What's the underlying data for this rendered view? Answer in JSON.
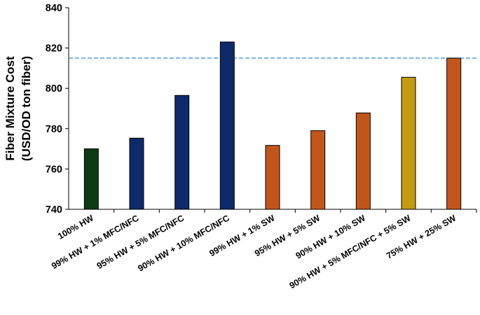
{
  "chart_data": {
    "type": "bar",
    "ylabel_line1": "Fiber Mixture Cost",
    "ylabel_line2": "(USD/OD ton fiber)",
    "ylim": [
      740,
      840
    ],
    "yticks": [
      "740",
      "760",
      "780",
      "800",
      "820",
      "840"
    ],
    "grid": false,
    "legend": "none",
    "reference_line": {
      "value": 815,
      "style": "dashed",
      "color": "#2b8cd8"
    },
    "categories": [
      "100% HW",
      "99% HW + 1% MFC/NFC",
      "95% HW + 5% MFC/NFC",
      "90% HW + 10% MFC/NFC",
      "99% HW + 1% SW",
      "95% HW + 5% SW",
      "90% HW + 10% SW",
      "90% HW + 5% MFC/NFC + 5% SW",
      "75% HW + 25% SW"
    ],
    "values": [
      770,
      775.3,
      796.5,
      823,
      771.7,
      779,
      787.8,
      805.5,
      815
    ],
    "colors": [
      "#0d3a12",
      "#0e2a6a",
      "#0e2a6a",
      "#0e2a6a",
      "#c2561a",
      "#c2561a",
      "#c2561a",
      "#c49a10",
      "#c2561a"
    ]
  }
}
